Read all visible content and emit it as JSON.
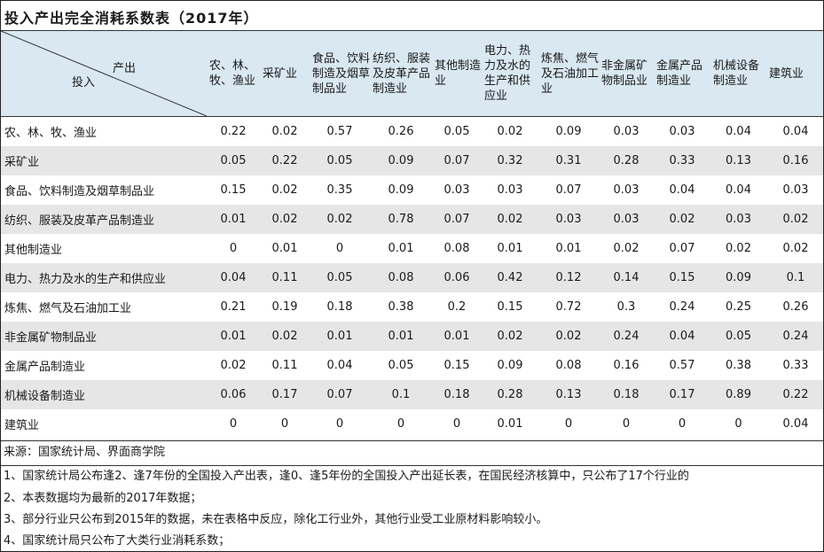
{
  "title": "投入产出完全消耗系数表（2017年）",
  "corner": {
    "output_label": "产出",
    "input_label": "投入"
  },
  "columns": [
    "农、林、牧、渔业",
    "采矿业",
    "食品、饮料制造及烟草制品业",
    "纺织、服装及皮革产品制造业",
    "其他制造业",
    "电力、热力及水的生产和供应业",
    "炼焦、燃气及石油加工业",
    "非金属矿物制品业",
    "金属产品制造业",
    "机械设备制造业",
    "建筑业"
  ],
  "rows": [
    {
      "label": "农、林、牧、渔业",
      "values": [
        "0.22",
        "0.02",
        "0.57",
        "0.26",
        "0.05",
        "0.02",
        "0.09",
        "0.03",
        "0.03",
        "0.04",
        "0.04"
      ]
    },
    {
      "label": "采矿业",
      "values": [
        "0.05",
        "0.22",
        "0.05",
        "0.09",
        "0.07",
        "0.32",
        "0.31",
        "0.28",
        "0.33",
        "0.13",
        "0.16"
      ]
    },
    {
      "label": "食品、饮料制造及烟草制品业",
      "values": [
        "0.15",
        "0.02",
        "0.35",
        "0.09",
        "0.03",
        "0.03",
        "0.07",
        "0.03",
        "0.04",
        "0.04",
        "0.03"
      ]
    },
    {
      "label": "纺织、服装及皮革产品制造业",
      "values": [
        "0.01",
        "0.02",
        "0.02",
        "0.78",
        "0.07",
        "0.02",
        "0.03",
        "0.03",
        "0.02",
        "0.03",
        "0.02"
      ]
    },
    {
      "label": "其他制造业",
      "values": [
        "0",
        "0.01",
        "0",
        "0.01",
        "0.08",
        "0.01",
        "0.01",
        "0.02",
        "0.07",
        "0.02",
        "0.02"
      ]
    },
    {
      "label": "电力、热力及水的生产和供应业",
      "values": [
        "0.04",
        "0.11",
        "0.05",
        "0.08",
        "0.06",
        "0.42",
        "0.12",
        "0.14",
        "0.15",
        "0.09",
        "0.1"
      ]
    },
    {
      "label": "炼焦、燃气及石油加工业",
      "values": [
        "0.21",
        "0.19",
        "0.18",
        "0.38",
        "0.2",
        "0.15",
        "0.72",
        "0.3",
        "0.24",
        "0.25",
        "0.26"
      ]
    },
    {
      "label": "非金属矿物制品业",
      "values": [
        "0.01",
        "0.02",
        "0.01",
        "0.01",
        "0.01",
        "0.02",
        "0.02",
        "0.24",
        "0.04",
        "0.05",
        "0.24"
      ]
    },
    {
      "label": "金属产品制造业",
      "values": [
        "0.02",
        "0.11",
        "0.04",
        "0.05",
        "0.15",
        "0.09",
        "0.08",
        "0.16",
        "0.57",
        "0.38",
        "0.33"
      ]
    },
    {
      "label": "机械设备制造业",
      "values": [
        "0.06",
        "0.17",
        "0.07",
        "0.1",
        "0.18",
        "0.28",
        "0.13",
        "0.18",
        "0.17",
        "0.89",
        "0.22"
      ]
    },
    {
      "label": "建筑业",
      "values": [
        "0",
        "0",
        "0",
        "0",
        "0",
        "0.01",
        "0",
        "0",
        "0",
        "0",
        "0.04"
      ]
    }
  ],
  "source": "来源：国家统计局、界面商学院",
  "notes": [
    "1、国家统计局公布逢2、逢7年份的全国投入产出表，逢0、逢5年份的全国投入产出延长表，在国民经济核算中，只公布了17个行业的",
    "2、本表数据均为最新的2017年数据；",
    "3、部分行业只公布到2015年的数据，未在表格中反应，除化工行业外，其他行业受工业原材料影响较小。",
    "4、国家统计局只公布了大类行业消耗系数；"
  ],
  "colors": {
    "header_bg": "#d9e8f1",
    "stripe_bg": "#e6e6e6",
    "border": "#333333"
  }
}
